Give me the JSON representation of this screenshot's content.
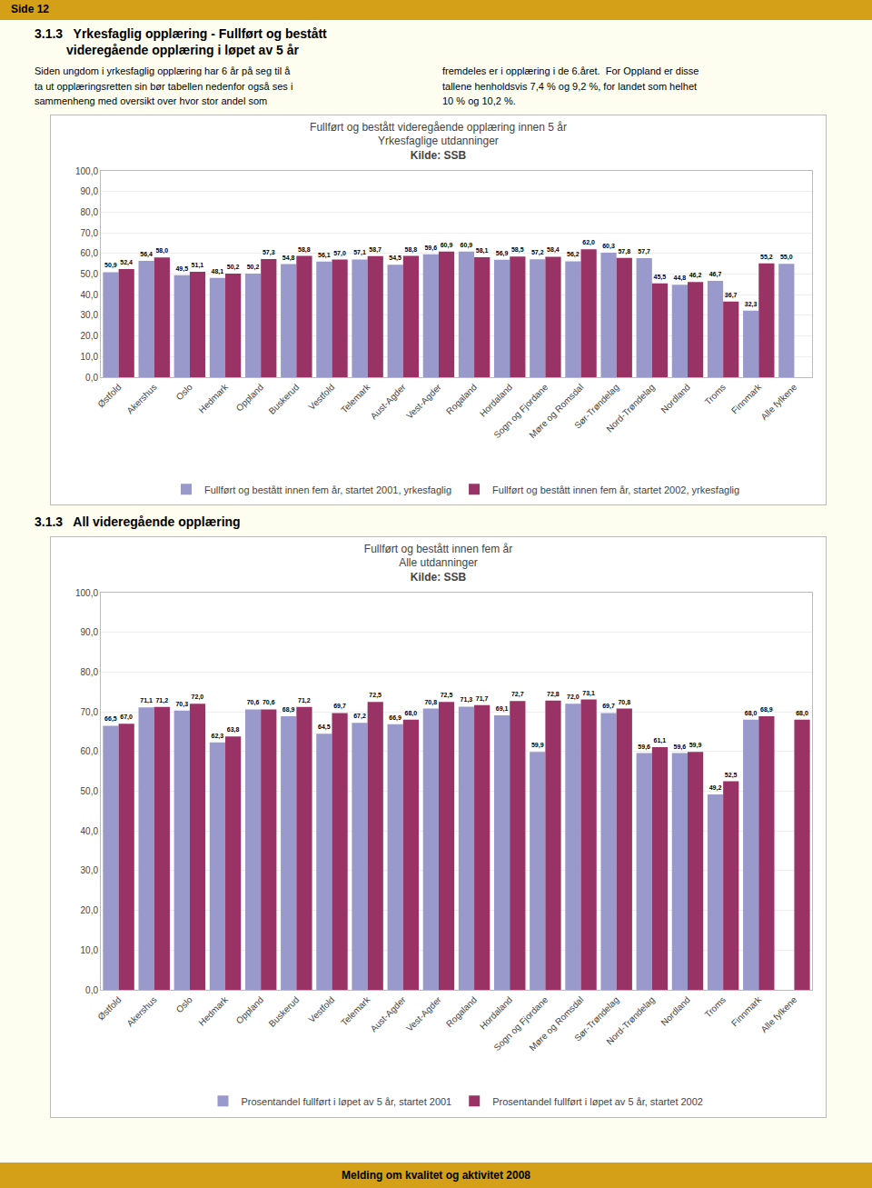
{
  "annotations": [
    "Side 12",
    "3.1.3   Yrkesfaglig opplæring - Fullført og bestått",
    "         videregående opplæring i løpet av 5 år",
    "Siden ungdom i yrkesfaglig opplæring har 6 år på seg til å\nta ut opplæringsretten sin bør tabellen nedenfor også ses i\nsammenheng med oversikt over hvor stor andel som",
    "fremdeles er i opplæring i de 6.året.  For Oppland er disse\ntallene henholdsvis 7,4 % og 9,2 %, for landet som helhet\n10 % og 10,2 %.",
    "3.1.3   All videregående opplæring",
    "Melding om kvalitet og aktivitet 2008"
  ],
  "chart_data": [
    {
      "type": "bar",
      "title": "Fullført og bestått videregående opplæring innen 5 år",
      "subtitle": "Yrkesfaglige utdanninger",
      "annotations": [
        "Kilde: SSB"
      ],
      "categories": [
        "Østfold",
        "Akershus",
        "Oslo",
        "Hedmark",
        "Oppland",
        "Buskerud",
        "Vestfold",
        "Telemark",
        "Aust-Agder",
        "Vest-Agder",
        "Rogaland",
        "Hordaland",
        "Sogn og Fjordane",
        "Møre og Romsdal",
        "Sør-Trøndelag",
        "Nord-Trøndelag",
        "Nordland",
        "Troms",
        "Finnmark",
        "Alle fylkene"
      ],
      "series": [
        {
          "name": "Fullført og bestått innen fem år, startet 2001, yrkesfaglig",
          "color": "#9999CC",
          "values": [
            50.9,
            56.4,
            49.5,
            48.1,
            50.2,
            54.8,
            56.1,
            57.1,
            54.5,
            59.6,
            60.9,
            56.9,
            57.2,
            56.2,
            60.3,
            57.7,
            44.8,
            46.7,
            32.3,
            55.0
          ],
          "value_labels": [
            "50,9",
            "56,4",
            "49,5",
            "48,1",
            "50,2",
            "54,8",
            "56,1",
            "57,1",
            "54,5",
            "59,6",
            "60,9",
            "56,9",
            "57,2",
            "56,2",
            "60,3",
            "57,7",
            "44,8",
            "46,7",
            "32,3",
            "55,0"
          ]
        },
        {
          "name": "Fullført og bestått innen fem år, startet 2002, yrkesfaglig",
          "color": "#993366",
          "values": [
            52.4,
            58.0,
            51.1,
            50.2,
            57.3,
            58.8,
            57.0,
            58.7,
            58.8,
            60.9,
            58.1,
            58.5,
            58.4,
            62.0,
            57.8,
            45.5,
            46.2,
            36.7,
            55.2,
            null
          ],
          "value_labels": [
            "52,4",
            "58,0",
            "51,1",
            "50,2",
            "57,3",
            "58,8",
            "57,0",
            "58,7",
            "58,8",
            "60,9",
            "58,1",
            "58,5",
            "58,4",
            "62,0",
            "57,8",
            "45,5",
            "46,2",
            "36,7",
            "55,2",
            null
          ]
        }
      ],
      "ylim": [
        0,
        100
      ],
      "yticks": [
        {
          "value": 0,
          "label": "0,0"
        },
        {
          "value": 10,
          "label": "10,0"
        },
        {
          "value": 20,
          "label": "20,0"
        },
        {
          "value": 30,
          "label": "30,0"
        },
        {
          "value": 40,
          "label": "40,0"
        },
        {
          "value": 50,
          "label": "50,0"
        },
        {
          "value": 60,
          "label": "60,0"
        },
        {
          "value": 70,
          "label": "70,0"
        },
        {
          "value": 80,
          "label": "80,0"
        },
        {
          "value": 90,
          "label": "90,0"
        },
        {
          "value": 100,
          "label": "100,0"
        }
      ],
      "grid": true,
      "legend": "bottom",
      "data_labels": true
    },
    {
      "type": "bar",
      "title": "Fullført og bestått innen fem år",
      "subtitle": "Alle utdanninger",
      "annotations": [
        "Kilde: SSB"
      ],
      "categories": [
        "Østfold",
        "Akershus",
        "Oslo",
        "Hedmark",
        "Oppland",
        "Buskerud",
        "Vestfold",
        "Telemark",
        "Aust-Agder",
        "Vest-Agder",
        "Rogaland",
        "Hordaland",
        "Sogn og Fjordane",
        "Møre og Romsdal",
        "Sør-Trøndelag",
        "Nord-Trøndelag",
        "Nordland",
        "Troms",
        "Finnmark",
        "Alle fylkene"
      ],
      "series": [
        {
          "name": "Prosentandel fullført i løpet av 5 år, startet 2001",
          "color": "#9999CC",
          "values": [
            66.5,
            71.1,
            70.3,
            62.3,
            70.6,
            68.9,
            64.5,
            67.2,
            66.9,
            70.8,
            71.3,
            69.1,
            59.9,
            72.0,
            69.7,
            59.6,
            59.6,
            49.2,
            68.0,
            null
          ],
          "value_labels": [
            "66,5",
            "71,1",
            "70,3",
            "62,3",
            "70,6",
            "68,9",
            "64,5",
            "67,2",
            "66,9",
            "70,8",
            "71,3",
            "69,1",
            "59,9",
            "72,0",
            "69,7",
            "59,6",
            "59,6",
            "49,2",
            "68,0",
            null
          ]
        },
        {
          "name": "Prosentandel fullført i løpet av 5 år, startet 2002",
          "color": "#993366",
          "values": [
            67.0,
            71.2,
            72.0,
            63.8,
            70.6,
            71.2,
            69.7,
            72.5,
            68.0,
            72.5,
            71.7,
            72.7,
            72.8,
            73.1,
            70.8,
            61.1,
            59.9,
            52.5,
            68.9,
            68.0
          ],
          "value_labels": [
            "67,0",
            "71,2",
            "72,0",
            "63,8",
            "70,6",
            "71,2",
            "69,7",
            "72,5",
            "68,0",
            "72,5",
            "71,7",
            "72,7",
            "72,8",
            "73,1",
            "70,8",
            "61,1",
            "59,9",
            "52,5",
            "68,9",
            "68,0"
          ]
        }
      ],
      "ylim": [
        0,
        100
      ],
      "yticks": [
        {
          "value": 0,
          "label": "0,0"
        },
        {
          "value": 10,
          "label": "10,0"
        },
        {
          "value": 20,
          "label": "20,0"
        },
        {
          "value": 30,
          "label": "30,0"
        },
        {
          "value": 40,
          "label": "40,0"
        },
        {
          "value": 50,
          "label": "50,0"
        },
        {
          "value": 60,
          "label": "60,0"
        },
        {
          "value": 70,
          "label": "70,0"
        },
        {
          "value": 80,
          "label": "80,0"
        },
        {
          "value": 90,
          "label": "90,0"
        },
        {
          "value": 100,
          "label": "100,0"
        }
      ],
      "grid": true,
      "legend": "bottom",
      "data_labels": true
    }
  ]
}
